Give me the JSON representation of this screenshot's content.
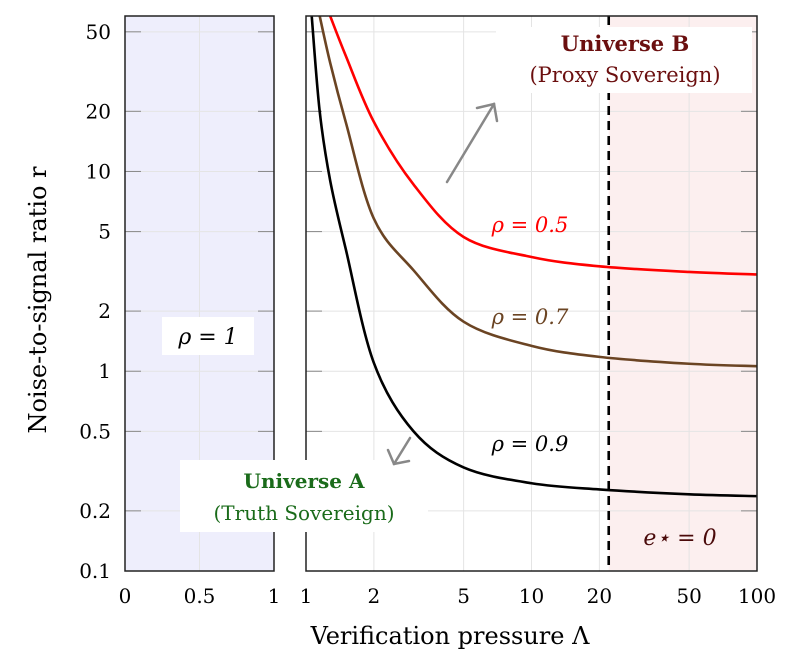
{
  "chart_data": [
    {
      "type": "area",
      "panel": "left",
      "x_ticks": [
        "0",
        "0.5",
        "1"
      ],
      "xlim": [
        0,
        1
      ],
      "ylim": [
        0.1,
        60
      ],
      "y_scale": "log",
      "fill_color": "#eeeefc",
      "grid": true,
      "annotation": "ρ = 1"
    },
    {
      "type": "line",
      "panel": "right",
      "x_scale": "log",
      "y_scale": "log",
      "xlim": [
        1,
        100
      ],
      "ylim": [
        0.1,
        60
      ],
      "x_ticks": [
        "1",
        "2",
        "5",
        "10",
        "20",
        "50",
        "100"
      ],
      "y_ticks": [
        "0.1",
        "0.2",
        "0.5",
        "1",
        "2",
        "5",
        "10",
        "20",
        "50"
      ],
      "grid": true,
      "xlabel": "Verification pressure Λ",
      "ylabel": "Noise-to-signal ratio r",
      "x": [
        1.06,
        1.15,
        1.28,
        1.5,
        2,
        3,
        5,
        10,
        20,
        50,
        100
      ],
      "series": [
        {
          "name": "ρ = 0.5",
          "color": "#ff0000",
          "values": [
            null,
            null,
            60,
            38,
            17.7,
            8.6,
            4.7,
            3.73,
            3.35,
            3.14,
            3.05
          ]
        },
        {
          "name": "ρ = 0.7",
          "color": "#6b4423",
          "values": [
            null,
            60,
            35,
            17.7,
            5.8,
            3.2,
            1.77,
            1.34,
            1.18,
            1.09,
            1.06
          ]
        },
        {
          "name": "ρ = 0.9",
          "color": "#000000",
          "values": [
            60,
            20,
            9,
            4.1,
            1.1,
            0.5,
            0.33,
            0.275,
            0.256,
            0.242,
            0.237
          ]
        }
      ],
      "threshold": {
        "x": 22,
        "style": "dashed",
        "region_label": "e⋆ = 0",
        "region_color": "#fcefef"
      },
      "annotations": {
        "universe_b_title": "Universe B",
        "universe_b_subtitle": "(Proxy Sovereign)",
        "universe_b_color": "#6b0f0f",
        "universe_a_title": "Universe A",
        "universe_a_subtitle": "(Truth Sovereign)",
        "universe_a_color": "#1a6b1a",
        "arrow_color": "#888888"
      }
    }
  ]
}
